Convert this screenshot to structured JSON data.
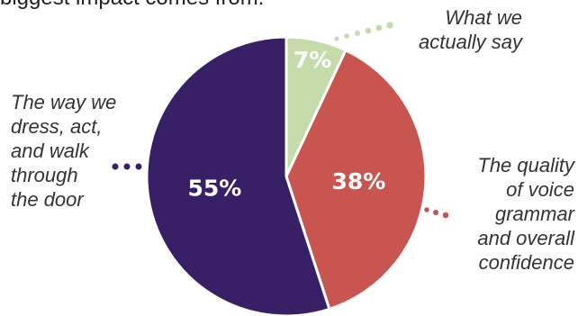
{
  "heading": "biggest impact comes from:",
  "chart_data": {
    "type": "pie",
    "title": "",
    "slices": [
      {
        "label": "What we actually say",
        "value": 7,
        "display": "7%",
        "color": "#c5dcaa"
      },
      {
        "label": "The quality of voice grammar and overall confidence",
        "value": 38,
        "display": "38%",
        "color": "#c95551"
      },
      {
        "label": "The way we dress, act, and walk through the door",
        "value": 55,
        "display": "55%",
        "color": "#382066"
      }
    ],
    "legend": "callout labels with dotted leaders"
  },
  "annotations": {
    "say": [
      "What we",
      "actually say"
    ],
    "voice": [
      "The quality",
      "of voice",
      "grammar",
      "and overall",
      "confidence"
    ],
    "dress": [
      "The way we",
      "dress, act,",
      "and walk",
      "through",
      "the door"
    ]
  }
}
